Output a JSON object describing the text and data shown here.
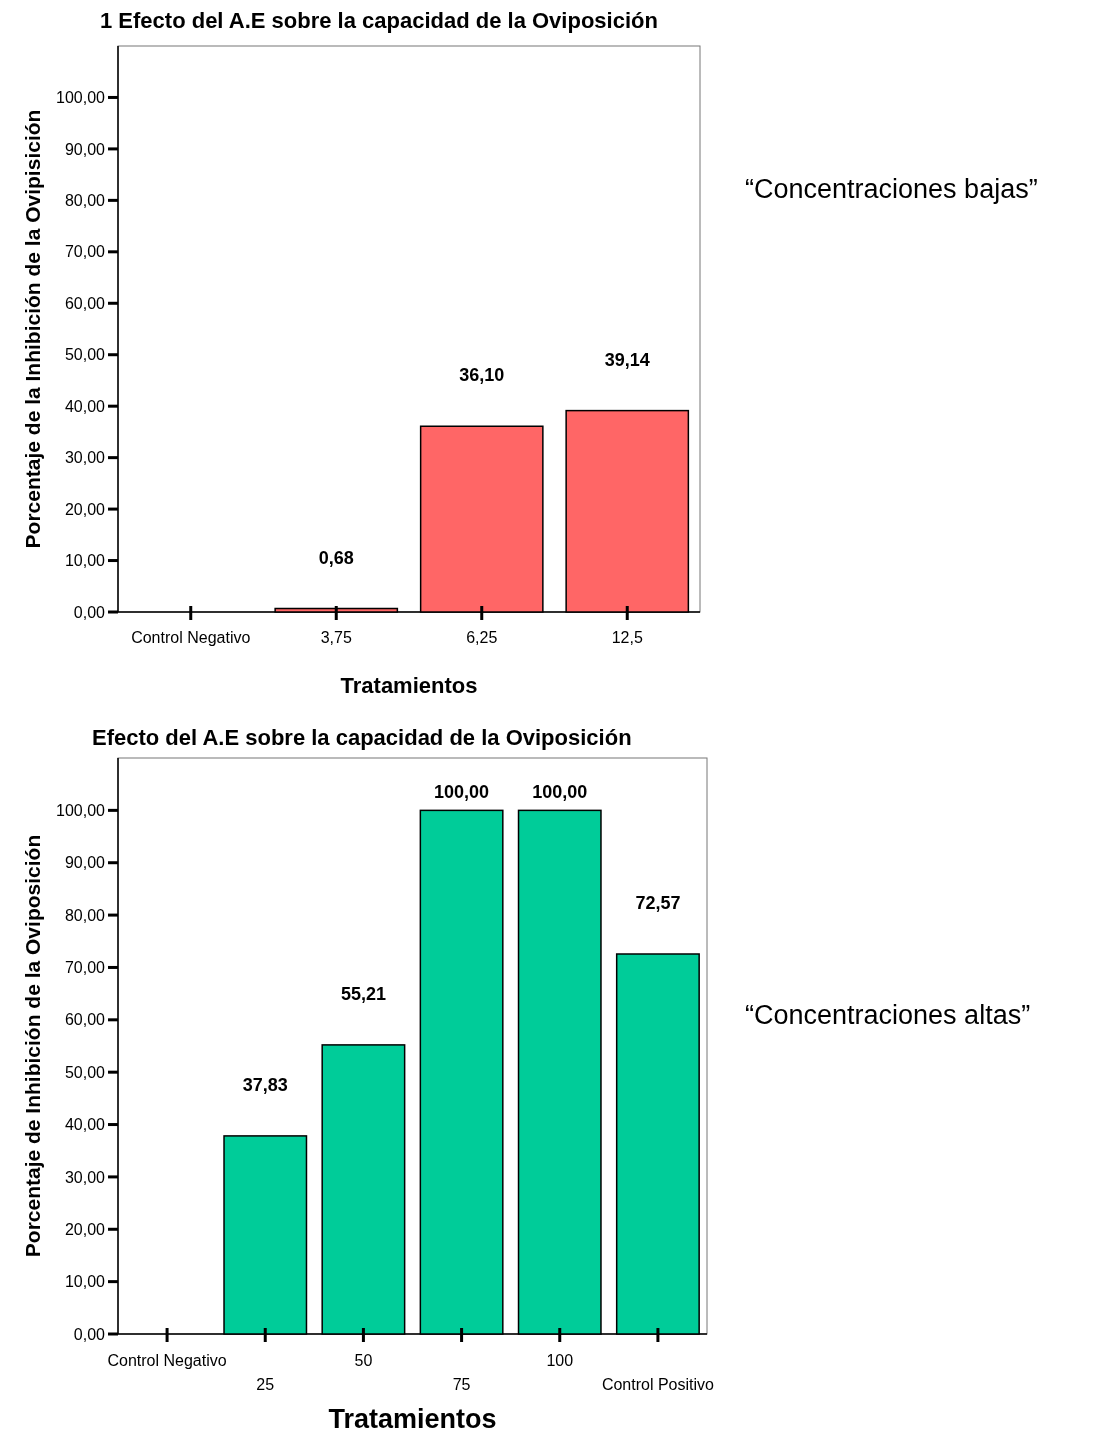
{
  "chart_data": [
    {
      "type": "bar",
      "title": "1 Efecto del A.E sobre la capacidad de la Oviposición",
      "xlabel": "Tratamientos",
      "ylabel": "Porcentaje de la Inhibición de la Ovipisición",
      "categories": [
        "Control Negativo",
        "3,75",
        "6,25",
        "12,5"
      ],
      "values": [
        null,
        0.68,
        36.1,
        39.14
      ],
      "value_labels": [
        null,
        "0,68",
        "36,10",
        "39,14"
      ],
      "color": "#ff6666",
      "ylim": [
        0,
        110
      ],
      "yticks": [
        {
          "value": 0,
          "label": "0,00"
        },
        {
          "value": 10,
          "label": "10,00"
        },
        {
          "value": 20,
          "label": "20,00"
        },
        {
          "value": 30,
          "label": "30,00"
        },
        {
          "value": 40,
          "label": "40,00"
        },
        {
          "value": 50,
          "label": "50,00"
        },
        {
          "value": 60,
          "label": "60,00"
        },
        {
          "value": 70,
          "label": "70,00"
        },
        {
          "value": 80,
          "label": "80,00"
        },
        {
          "value": 90,
          "label": "90,00"
        },
        {
          "value": 100,
          "label": "100,00"
        }
      ],
      "grid": false,
      "annotations": [
        "“Concentraciones bajas”"
      ]
    },
    {
      "type": "bar",
      "title": "Efecto del A.E sobre la capacidad de la Oviposición",
      "xlabel": "Tratamientos",
      "ylabel": "Porcentaje de Inhibición de la Oviposición",
      "categories": [
        "Control Negativo",
        "25",
        "50",
        "75",
        "100",
        "Control Positivo"
      ],
      "values": [
        null,
        37.83,
        55.21,
        100,
        100,
        72.57
      ],
      "value_labels": [
        null,
        "37,83",
        "55,21",
        "100,00",
        "100,00",
        "72,57"
      ],
      "color": "#00cc99",
      "ylim": [
        0,
        110
      ],
      "yticks": [
        {
          "value": 0,
          "label": "0,00"
        },
        {
          "value": 10,
          "label": "10,00"
        },
        {
          "value": 20,
          "label": "20,00"
        },
        {
          "value": 30,
          "label": "30,00"
        },
        {
          "value": 40,
          "label": "40,00"
        },
        {
          "value": 50,
          "label": "50,00"
        },
        {
          "value": 60,
          "label": "60,00"
        },
        {
          "value": 70,
          "label": "70,00"
        },
        {
          "value": 80,
          "label": "80,00"
        },
        {
          "value": 90,
          "label": "90,00"
        },
        {
          "value": 100,
          "label": "100,00"
        }
      ],
      "grid": false,
      "annotations": [
        "“Concentraciones altas”"
      ]
    }
  ]
}
